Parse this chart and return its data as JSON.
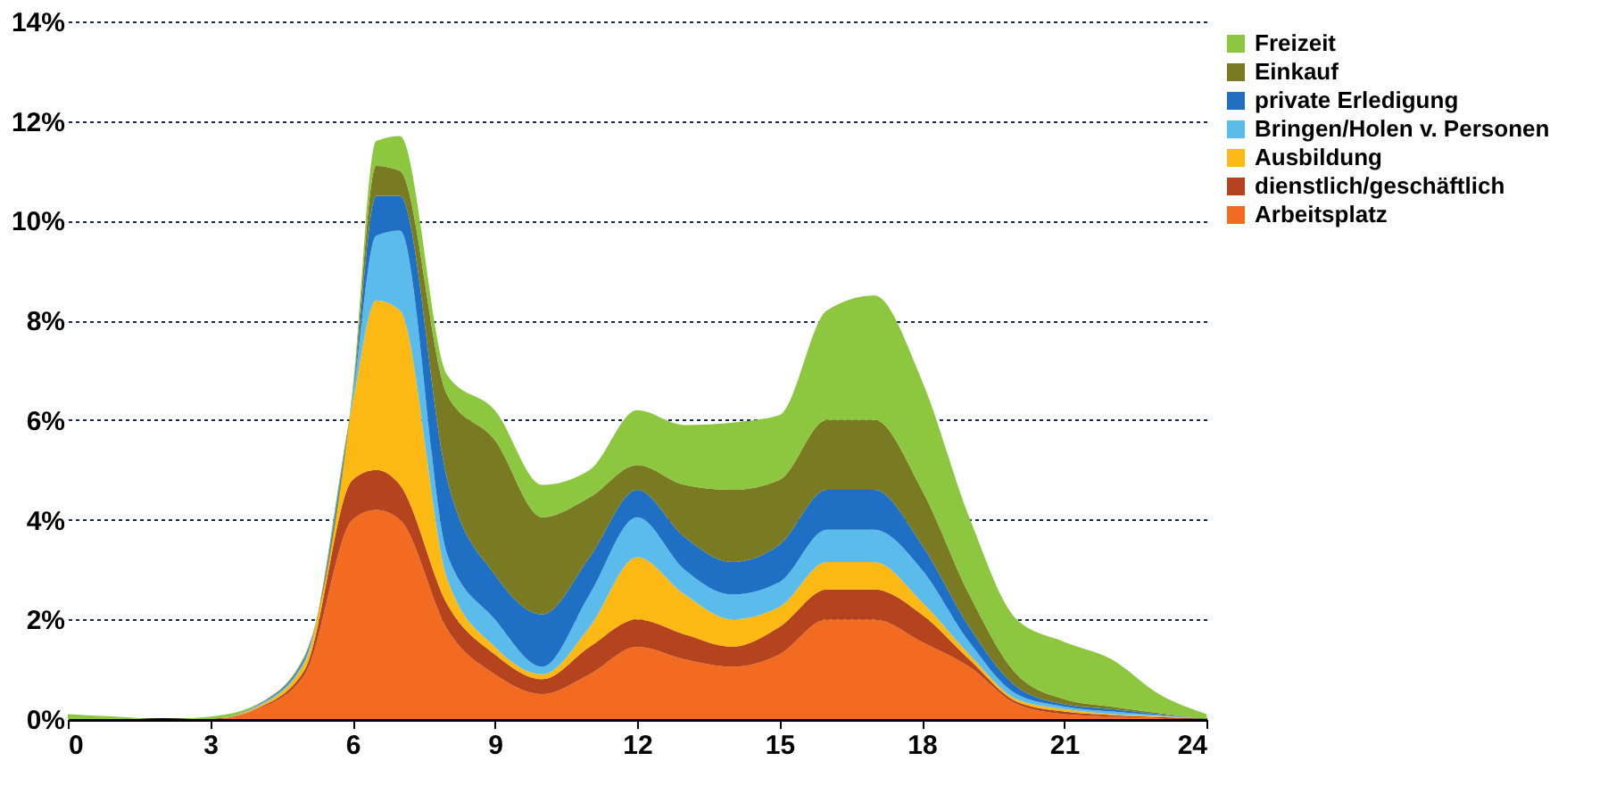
{
  "chart_data": {
    "type": "area",
    "stacked": true,
    "x": [
      0,
      1,
      2,
      3,
      4,
      5,
      6,
      6.5,
      7,
      8,
      9,
      10,
      11,
      12,
      13,
      14,
      15,
      16,
      17,
      18,
      19,
      20,
      21,
      22,
      23,
      24
    ],
    "series": [
      {
        "name": "Arbeitsplatz",
        "color": "#f26b21",
        "values": [
          0,
          0,
          0,
          0,
          0.2,
          0.9,
          4.0,
          4.2,
          4.0,
          1.8,
          0.9,
          0.5,
          0.9,
          1.45,
          1.2,
          1.05,
          1.3,
          2.0,
          2.0,
          1.55,
          1.05,
          0.3,
          0.1,
          0.05,
          0.02,
          0
        ]
      },
      {
        "name": "dienstlich/geschäftlich",
        "color": "#b5431e",
        "values": [
          0,
          0,
          0,
          0,
          0.02,
          0.1,
          0.8,
          0.8,
          0.7,
          0.5,
          0.4,
          0.3,
          0.55,
          0.55,
          0.5,
          0.4,
          0.55,
          0.6,
          0.6,
          0.55,
          0.15,
          0.05,
          0.05,
          0.03,
          0.02,
          0
        ]
      },
      {
        "name": "Ausbildung",
        "color": "#fdb913",
        "values": [
          0,
          0,
          0,
          0,
          0.03,
          0.15,
          1.5,
          3.4,
          3.5,
          0.5,
          0.15,
          0.1,
          0.4,
          1.25,
          0.8,
          0.55,
          0.4,
          0.55,
          0.55,
          0.25,
          0.1,
          0.05,
          0.05,
          0.02,
          0.02,
          0
        ]
      },
      {
        "name": "Bringen/Holen v. Personen",
        "color": "#5bbcec",
        "values": [
          0,
          0,
          0,
          0,
          0.02,
          0.05,
          0.1,
          1.3,
          1.6,
          0.5,
          0.55,
          0.15,
          0.65,
          0.8,
          0.5,
          0.5,
          0.5,
          0.65,
          0.65,
          0.65,
          0.25,
          0.1,
          0.05,
          0.05,
          0.02,
          0
        ]
      },
      {
        "name": "private Erledigung",
        "color": "#1f6fc5",
        "values": [
          0,
          0,
          0,
          0,
          0.01,
          0.05,
          0.05,
          0.8,
          0.7,
          1.5,
          0.9,
          1.05,
          0.75,
          0.55,
          0.65,
          0.65,
          0.75,
          0.8,
          0.8,
          0.5,
          0.3,
          0.15,
          0.05,
          0.05,
          0.02,
          0
        ]
      },
      {
        "name": "Einkauf",
        "color": "#7a7a22",
        "values": [
          0,
          0,
          0,
          0,
          0.01,
          0.03,
          0.05,
          0.6,
          0.5,
          1.7,
          2.7,
          1.95,
          1.2,
          0.5,
          1.05,
          1.45,
          1.3,
          1.4,
          1.4,
          1.1,
          0.65,
          0.25,
          0.1,
          0.05,
          0.02,
          0
        ]
      },
      {
        "name": "Freizeit",
        "color": "#8dc63f",
        "values": [
          0.1,
          0.05,
          0,
          0.05,
          0.01,
          0.02,
          0.1,
          0.5,
          0.7,
          0.4,
          0.6,
          0.65,
          0.55,
          1.1,
          1.2,
          1.35,
          1.3,
          2.2,
          2.5,
          2.2,
          1.55,
          1.1,
          1.15,
          0.95,
          0.38,
          0.1
        ]
      }
    ],
    "xlim": [
      0,
      24
    ],
    "xticks": [
      0,
      3,
      6,
      9,
      12,
      15,
      18,
      21,
      24
    ],
    "ylim": [
      0,
      14
    ],
    "yticks": [
      {
        "value": 0,
        "label": "0%"
      },
      {
        "value": 2,
        "label": "2%"
      },
      {
        "value": 4,
        "label": "4%"
      },
      {
        "value": 6,
        "label": "6%"
      },
      {
        "value": 8,
        "label": "8%"
      },
      {
        "value": 10,
        "label": "10%"
      },
      {
        "value": 12,
        "label": "12%"
      },
      {
        "value": 14,
        "label": "14%"
      }
    ],
    "grid": "y",
    "legend": "top right"
  }
}
